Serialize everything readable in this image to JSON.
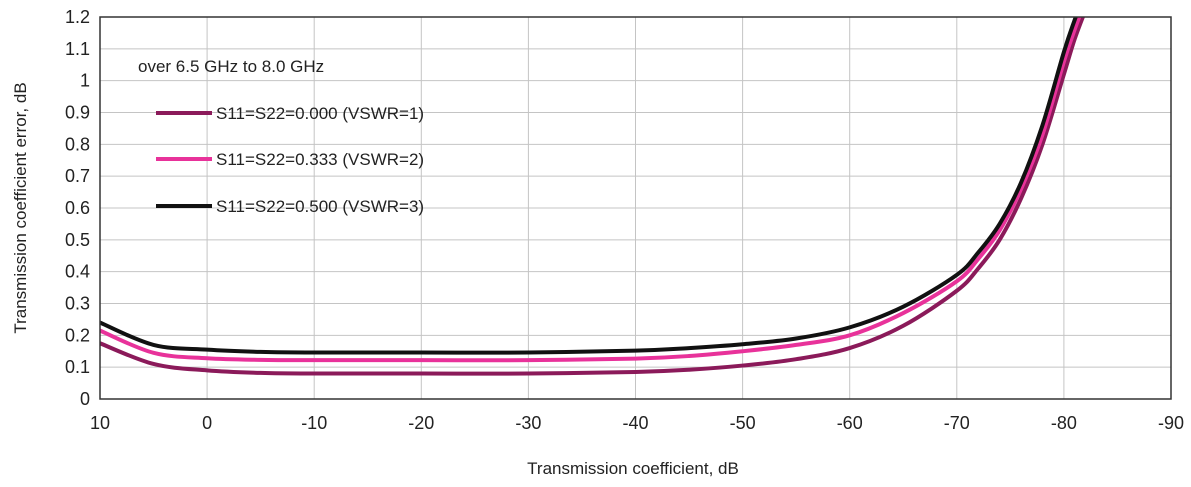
{
  "chart_data": {
    "type": "line",
    "title": "",
    "xlabel": "Transmission coefficient, dB",
    "ylabel": "Transmission coefficient error, dB",
    "annotation": "over 6.5 GHz to 8.0 GHz",
    "xlim": [
      10,
      -90
    ],
    "ylim": [
      0,
      1.2
    ],
    "xticks": [
      10,
      0,
      -10,
      -20,
      -30,
      -40,
      -50,
      -60,
      -70,
      -80,
      -90
    ],
    "yticks": [
      0,
      0.1,
      0.2,
      0.3,
      0.4,
      0.5,
      0.6,
      0.7,
      0.8,
      0.9,
      1,
      1.1,
      1.2
    ],
    "grid": true,
    "legend_position": "top-left",
    "series": [
      {
        "name": "S11=S22=0.000 (VSWR=1)",
        "color": "#8B1A5A",
        "x": [
          10,
          5,
          0,
          -5,
          -10,
          -20,
          -30,
          -40,
          -45,
          -50,
          -55,
          -60,
          -65,
          -70,
          -72,
          -74,
          -76,
          -78,
          -80,
          -81,
          -82
        ],
        "y": [
          0.175,
          0.11,
          0.09,
          0.082,
          0.08,
          0.08,
          0.08,
          0.085,
          0.092,
          0.105,
          0.125,
          0.16,
          0.23,
          0.34,
          0.41,
          0.5,
          0.63,
          0.8,
          1.02,
          1.13,
          1.22
        ]
      },
      {
        "name": "S11=S22=0.333 (VSWR=2)",
        "color": "#E8329A",
        "x": [
          10,
          5,
          0,
          -5,
          -10,
          -20,
          -30,
          -40,
          -45,
          -50,
          -55,
          -60,
          -65,
          -70,
          -72,
          -74,
          -76,
          -78,
          -80,
          -81,
          -82
        ],
        "y": [
          0.215,
          0.145,
          0.128,
          0.123,
          0.122,
          0.122,
          0.122,
          0.127,
          0.135,
          0.15,
          0.17,
          0.2,
          0.27,
          0.37,
          0.44,
          0.53,
          0.66,
          0.83,
          1.06,
          1.16,
          1.25
        ]
      },
      {
        "name": "S11=S22=0.500 (VSWR=3)",
        "color": "#111111",
        "x": [
          10,
          5,
          0,
          -5,
          -10,
          -20,
          -30,
          -40,
          -45,
          -50,
          -55,
          -60,
          -65,
          -70,
          -72,
          -74,
          -76,
          -78,
          -80,
          -81,
          -82
        ],
        "y": [
          0.24,
          0.17,
          0.155,
          0.148,
          0.146,
          0.146,
          0.146,
          0.152,
          0.16,
          0.172,
          0.19,
          0.225,
          0.29,
          0.39,
          0.46,
          0.55,
          0.68,
          0.86,
          1.09,
          1.19,
          1.28
        ]
      }
    ]
  }
}
